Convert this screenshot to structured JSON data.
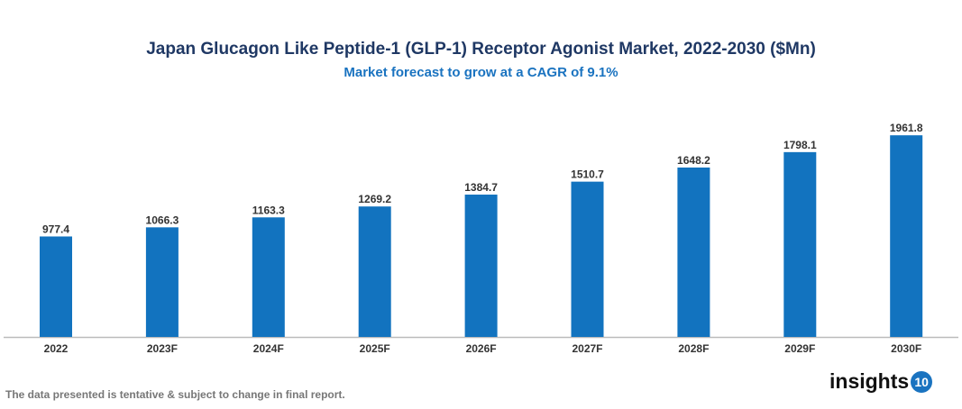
{
  "chart_data": {
    "type": "bar",
    "title": "Japan Glucagon Like Peptide-1 (GLP-1) Receptor Agonist Market, 2022-2030 ($Mn)",
    "subtitle": "Market forecast to grow at a CAGR of 9.1%",
    "categories": [
      "2022",
      "2023F",
      "2024F",
      "2025F",
      "2026F",
      "2027F",
      "2028F",
      "2029F",
      "2030F"
    ],
    "values": [
      977.4,
      1066.3,
      1163.3,
      1269.2,
      1384.7,
      1510.7,
      1648.2,
      1798.1,
      1961.8
    ],
    "ylim": [
      0,
      2200
    ],
    "grid": false,
    "bar_color": "#1273bf"
  },
  "footer": {
    "note": "The data presented is tentative & subject to change in final report.",
    "logo_text": "insights",
    "logo_number": "10"
  }
}
